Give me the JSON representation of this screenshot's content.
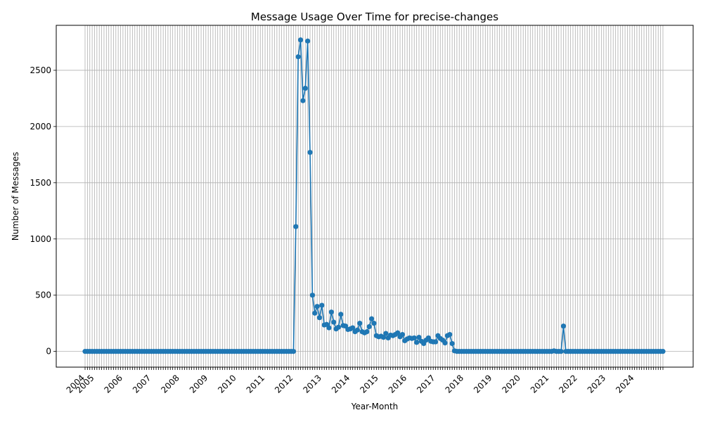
{
  "chart_data": {
    "type": "line",
    "title": "Message Usage Over Time for precise-changes",
    "xlabel": "Year-Month",
    "ylabel": "Number of Messages",
    "x_start": "2004-09",
    "x_end": "2025-01",
    "xtick_labels": [
      "2004",
      "2005",
      "2006",
      "2007",
      "2008",
      "2009",
      "2010",
      "2011",
      "2012",
      "2013",
      "2014",
      "2015",
      "2016",
      "2017",
      "2018",
      "2019",
      "2020",
      "2021",
      "2022",
      "2023",
      "2024"
    ],
    "yticks": [
      0,
      500,
      1000,
      1500,
      2000,
      2500
    ],
    "ylim": [
      -140,
      2900
    ],
    "grid": true,
    "marker": "circle",
    "color": "#1f77b4",
    "series": [
      {
        "points": [
          [
            "2012-01",
            0
          ],
          [
            "2012-02",
            1110
          ],
          [
            "2012-03",
            2620
          ],
          [
            "2012-04",
            2770
          ],
          [
            "2012-05",
            2230
          ],
          [
            "2012-06",
            2340
          ],
          [
            "2012-07",
            2760
          ],
          [
            "2012-08",
            1770
          ],
          [
            "2012-09",
            500
          ],
          [
            "2012-10",
            340
          ],
          [
            "2012-11",
            400
          ],
          [
            "2012-12",
            300
          ],
          [
            "2013-01",
            410
          ],
          [
            "2013-02",
            235
          ],
          [
            "2013-03",
            240
          ],
          [
            "2013-04",
            210
          ],
          [
            "2013-05",
            350
          ],
          [
            "2013-06",
            260
          ],
          [
            "2013-07",
            200
          ],
          [
            "2013-08",
            215
          ],
          [
            "2013-09",
            330
          ],
          [
            "2013-10",
            230
          ],
          [
            "2013-11",
            225
          ],
          [
            "2013-12",
            195
          ],
          [
            "2014-01",
            200
          ],
          [
            "2014-02",
            210
          ],
          [
            "2014-03",
            175
          ],
          [
            "2014-04",
            190
          ],
          [
            "2014-05",
            250
          ],
          [
            "2014-06",
            175
          ],
          [
            "2014-07",
            165
          ],
          [
            "2014-08",
            175
          ],
          [
            "2014-09",
            220
          ],
          [
            "2014-10",
            290
          ],
          [
            "2014-11",
            250
          ],
          [
            "2014-12",
            140
          ],
          [
            "2015-01",
            130
          ],
          [
            "2015-02",
            135
          ],
          [
            "2015-03",
            125
          ],
          [
            "2015-04",
            160
          ],
          [
            "2015-05",
            120
          ],
          [
            "2015-06",
            145
          ],
          [
            "2015-07",
            140
          ],
          [
            "2015-08",
            150
          ],
          [
            "2015-09",
            165
          ],
          [
            "2015-10",
            130
          ],
          [
            "2015-11",
            150
          ],
          [
            "2015-12",
            95
          ],
          [
            "2016-01",
            110
          ],
          [
            "2016-02",
            120
          ],
          [
            "2016-03",
            115
          ],
          [
            "2016-04",
            120
          ],
          [
            "2016-05",
            80
          ],
          [
            "2016-06",
            125
          ],
          [
            "2016-07",
            90
          ],
          [
            "2016-08",
            70
          ],
          [
            "2016-09",
            100
          ],
          [
            "2016-10",
            120
          ],
          [
            "2016-11",
            90
          ],
          [
            "2016-12",
            85
          ],
          [
            "2017-01",
            85
          ],
          [
            "2017-02",
            140
          ],
          [
            "2017-03",
            115
          ],
          [
            "2017-04",
            100
          ],
          [
            "2017-05",
            75
          ],
          [
            "2017-06",
            140
          ],
          [
            "2017-07",
            150
          ],
          [
            "2017-08",
            70
          ],
          [
            "2017-09",
            5
          ],
          [
            "2017-10",
            0
          ],
          [
            "2021-03",
            5
          ],
          [
            "2021-07",
            225
          ]
        ]
      }
    ]
  }
}
